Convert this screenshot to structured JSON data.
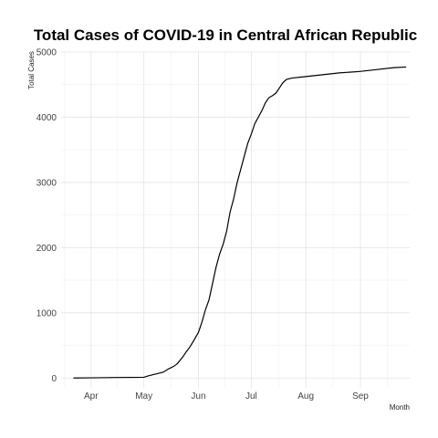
{
  "chart_data": {
    "type": "line",
    "title": "Total Cases of COVID-19 in Central African Republic",
    "xlabel": "Month",
    "ylabel": "Total Cases",
    "x_axis": {
      "type": "date",
      "range": [
        "2020-03-15",
        "2020-09-29"
      ],
      "ticks": [
        {
          "label": "Apr",
          "date": "2020-04-01"
        },
        {
          "label": "May",
          "date": "2020-05-01"
        },
        {
          "label": "Jun",
          "date": "2020-06-01"
        },
        {
          "label": "Jul",
          "date": "2020-07-01"
        },
        {
          "label": "Aug",
          "date": "2020-08-01"
        },
        {
          "label": "Sep",
          "date": "2020-09-01"
        }
      ]
    },
    "y_axis": {
      "range": [
        -150,
        5000
      ],
      "ticks": [
        0,
        1000,
        2000,
        3000,
        4000,
        5000
      ]
    },
    "grid": true,
    "series": [
      {
        "points": [
          [
            "2020-03-22",
            0
          ],
          [
            "2020-04-01",
            3
          ],
          [
            "2020-04-15",
            8
          ],
          [
            "2020-05-01",
            12
          ],
          [
            "2020-05-03",
            30
          ],
          [
            "2020-05-06",
            50
          ],
          [
            "2020-05-09",
            70
          ],
          [
            "2020-05-12",
            90
          ],
          [
            "2020-05-15",
            140
          ],
          [
            "2020-05-18",
            180
          ],
          [
            "2020-05-20",
            220
          ],
          [
            "2020-05-23",
            320
          ],
          [
            "2020-05-25",
            400
          ],
          [
            "2020-05-27",
            470
          ],
          [
            "2020-05-29",
            560
          ],
          [
            "2020-06-01",
            700
          ],
          [
            "2020-06-03",
            860
          ],
          [
            "2020-06-05",
            1050
          ],
          [
            "2020-06-07",
            1200
          ],
          [
            "2020-06-09",
            1450
          ],
          [
            "2020-06-11",
            1700
          ],
          [
            "2020-06-13",
            1900
          ],
          [
            "2020-06-15",
            2050
          ],
          [
            "2020-06-17",
            2250
          ],
          [
            "2020-06-19",
            2550
          ],
          [
            "2020-06-21",
            2750
          ],
          [
            "2020-06-23",
            3000
          ],
          [
            "2020-06-25",
            3200
          ],
          [
            "2020-06-27",
            3400
          ],
          [
            "2020-06-29",
            3600
          ],
          [
            "2020-07-01",
            3740
          ],
          [
            "2020-07-03",
            3900
          ],
          [
            "2020-07-05",
            4000
          ],
          [
            "2020-07-07",
            4100
          ],
          [
            "2020-07-09",
            4220
          ],
          [
            "2020-07-11",
            4300
          ],
          [
            "2020-07-13",
            4330
          ],
          [
            "2020-07-15",
            4370
          ],
          [
            "2020-07-17",
            4450
          ],
          [
            "2020-07-19",
            4530
          ],
          [
            "2020-07-21",
            4580
          ],
          [
            "2020-07-24",
            4600
          ],
          [
            "2020-07-31",
            4620
          ],
          [
            "2020-08-10",
            4650
          ],
          [
            "2020-08-20",
            4680
          ],
          [
            "2020-08-31",
            4700
          ],
          [
            "2020-09-10",
            4730
          ],
          [
            "2020-09-20",
            4760
          ],
          [
            "2020-09-27",
            4770
          ]
        ]
      }
    ]
  }
}
